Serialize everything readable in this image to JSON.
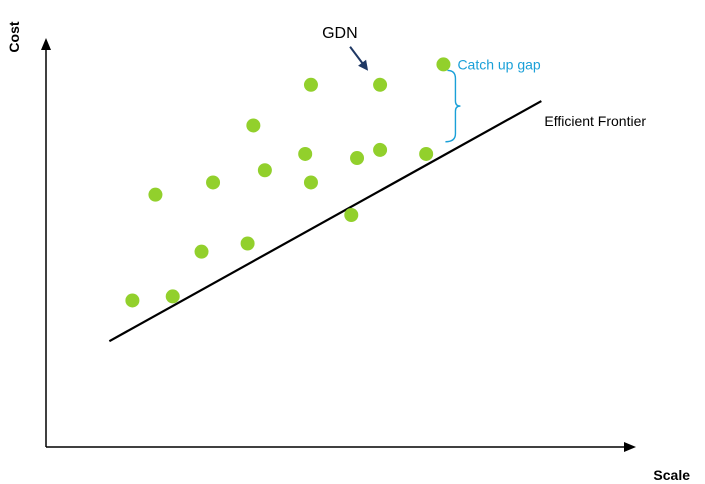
{
  "chart_data": {
    "type": "scatter",
    "xlabel": "Scale",
    "ylabel": "Cost",
    "xlim": [
      0,
      100
    ],
    "ylim": [
      0,
      100
    ],
    "grid": false,
    "ticks": false,
    "points": [
      {
        "x": 15,
        "y": 36
      },
      {
        "x": 22,
        "y": 37
      },
      {
        "x": 19,
        "y": 62
      },
      {
        "x": 27,
        "y": 48
      },
      {
        "x": 29,
        "y": 65
      },
      {
        "x": 35,
        "y": 50
      },
      {
        "x": 36,
        "y": 79
      },
      {
        "x": 38,
        "y": 68
      },
      {
        "x": 45,
        "y": 72
      },
      {
        "x": 46,
        "y": 89
      },
      {
        "x": 46,
        "y": 65
      },
      {
        "x": 53,
        "y": 57
      },
      {
        "x": 54,
        "y": 71
      },
      {
        "x": 58,
        "y": 73
      },
      {
        "x": 58,
        "y": 89
      },
      {
        "x": 66,
        "y": 72
      },
      {
        "x": 69,
        "y": 94
      }
    ],
    "frontier": {
      "label": "Efficient Frontier",
      "x": [
        11,
        86
      ],
      "y": [
        26,
        85
      ]
    },
    "annotations": {
      "highlight": {
        "label": "GDN",
        "x": 58,
        "y": 89
      },
      "gap": {
        "label": "Catch up gap",
        "x": 69,
        "y_top": 94,
        "y_bottom": 75
      }
    },
    "colors": {
      "points": "#92d02c",
      "line": "#000000",
      "gap": "#1aa0d8",
      "arrow": "#1f3864"
    }
  }
}
